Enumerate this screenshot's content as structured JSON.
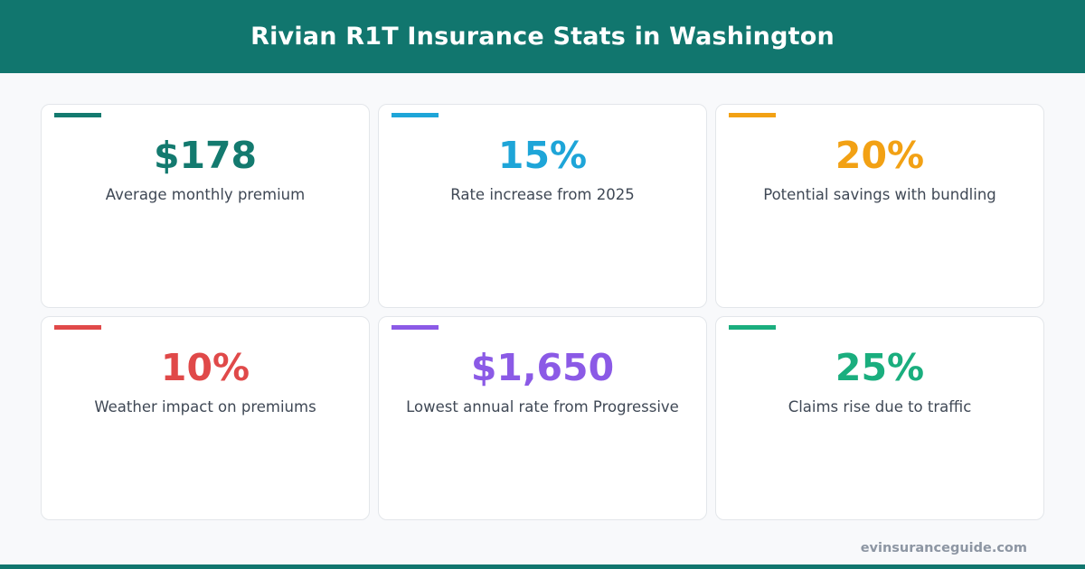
{
  "header": {
    "title": "Rivian R1T Insurance Stats in Washington",
    "background": "#11766e"
  },
  "stats": [
    {
      "value": "$178",
      "label": "Average monthly premium",
      "color": "#137a6f"
    },
    {
      "value": "15%",
      "label": "Rate increase from 2025",
      "color": "#1ea5d8"
    },
    {
      "value": "20%",
      "label": "Potential savings with bundling",
      "color": "#f2a114"
    },
    {
      "value": "10%",
      "label": "Weather impact on premiums",
      "color": "#e04949"
    },
    {
      "value": "$1,650",
      "label": "Lowest annual rate from Progressive",
      "color": "#8b5ae6"
    },
    {
      "value": "25%",
      "label": "Claims rise due to traffic",
      "color": "#1aae7e"
    }
  ],
  "footer": {
    "site": "evinsuranceguide.com"
  }
}
